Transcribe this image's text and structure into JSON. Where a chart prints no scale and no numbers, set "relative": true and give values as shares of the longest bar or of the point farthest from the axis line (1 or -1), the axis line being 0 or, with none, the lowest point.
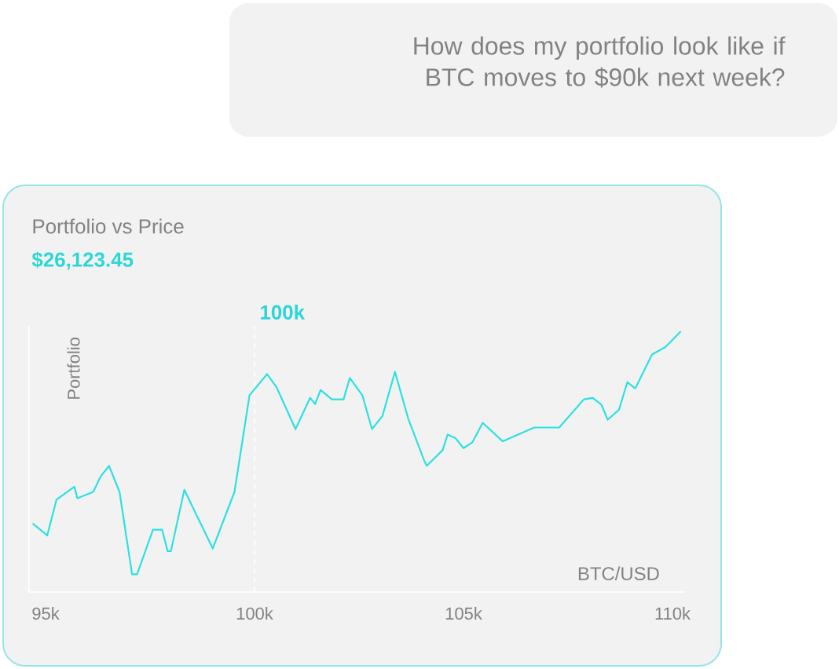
{
  "chart_data": {
    "type": "line",
    "title": "Portfolio vs Price",
    "subtitle": "$26,123.45",
    "xlabel": "BTC/USD",
    "ylabel": "Portfolio",
    "annotations": [
      "How does my portfolio look like if BTC moves to $90k next week?"
    ],
    "relative": true,
    "x": [
      94.69,
      95.04,
      95.26,
      95.69,
      95.76,
      96.14,
      96.32,
      96.52,
      96.77,
      97.07,
      97.19,
      97.57,
      97.79,
      97.92,
      98.0,
      98.32,
      99.0,
      99.52,
      99.88,
      100.3,
      100.53,
      100.98,
      101.33,
      101.45,
      101.58,
      101.85,
      102.13,
      102.28,
      102.58,
      102.81,
      103.06,
      103.36,
      103.68,
      104.06,
      104.12,
      104.5,
      104.62,
      104.81,
      105.0,
      105.21,
      105.46,
      105.94,
      106.69,
      107.29,
      107.88,
      108.09,
      108.3,
      108.45,
      108.72,
      108.92,
      109.11,
      109.51,
      109.83,
      110.2
    ],
    "series": [
      {
        "color": "#2ee0e0",
        "values": [
          0.263,
          0.217,
          0.354,
          0.404,
          0.36,
          0.384,
          0.444,
          0.484,
          0.384,
          0.068,
          0.068,
          0.239,
          0.239,
          0.157,
          0.157,
          0.392,
          0.167,
          0.384,
          0.755,
          0.836,
          0.785,
          0.625,
          0.745,
          0.721,
          0.775,
          0.739,
          0.739,
          0.821,
          0.755,
          0.625,
          0.675,
          0.845,
          0.664,
          0.504,
          0.484,
          0.544,
          0.604,
          0.59,
          0.552,
          0.574,
          0.649,
          0.578,
          0.631,
          0.631,
          0.739,
          0.745,
          0.719,
          0.661,
          0.699,
          0.805,
          0.781,
          0.911,
          0.94,
          1
        ]
      }
    ],
    "xlim": [
      94.6,
      110.3
    ],
    "xticks": [
      {
        "value": 95,
        "label": "95k"
      },
      {
        "value": 100,
        "label": "100k"
      },
      {
        "value": 105,
        "label": "105k"
      },
      {
        "value": 110,
        "label": "110k"
      }
    ],
    "ref_lines": [
      {
        "axis": "x",
        "value": 100,
        "label": "100k",
        "color": "#ffffff",
        "line_style": "dashed"
      }
    ]
  }
}
